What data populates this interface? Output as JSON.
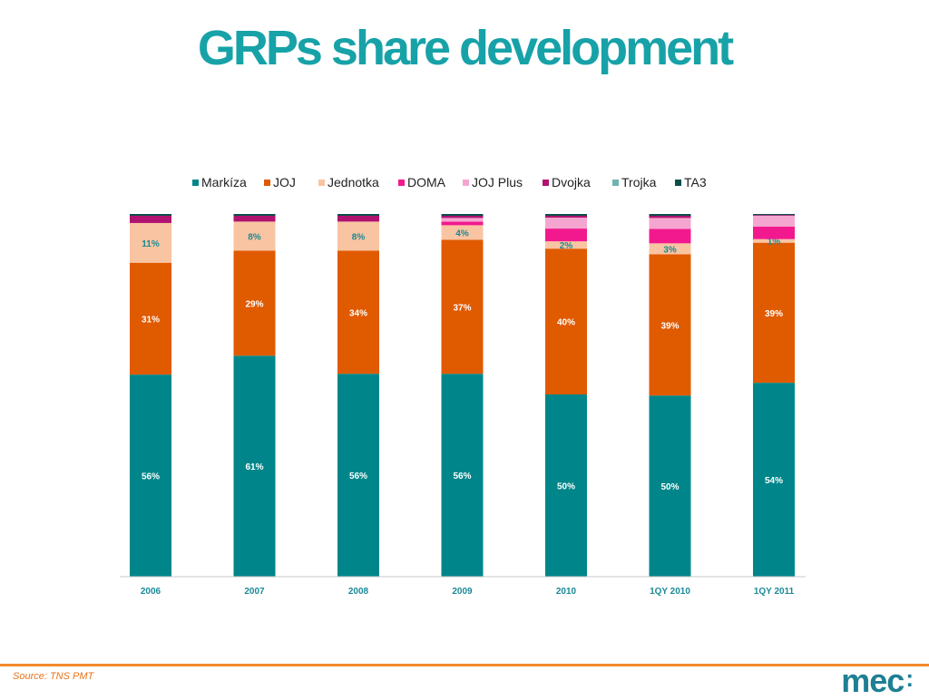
{
  "colors": {
    "Markíza": "#00868a",
    "JOJ": "#e05a00",
    "Jednotka": "#f9c4a1",
    "DOMA": "#f2198f",
    "JOJ Plus": "#f5a6d0",
    "Dvojka": "#b0126f",
    "Trojka": "#6fb4b0",
    "TA3": "#0e4d4a"
  },
  "chart_data": {
    "type": "bar",
    "stacked": true,
    "title": "GRPs share development",
    "categories": [
      "2006",
      "2007",
      "2008",
      "2009",
      "2010",
      "1QY 2010",
      "1QY 2011"
    ],
    "ylim": [
      0,
      100
    ],
    "grid": false,
    "legend_position": "top",
    "series": [
      {
        "name": "Markíza",
        "values": [
          56,
          61,
          56,
          56,
          50,
          50,
          54
        ],
        "labels": [
          "56%",
          "61%",
          "56%",
          "56%",
          "50%",
          "50%",
          "54%"
        ]
      },
      {
        "name": "JOJ",
        "values": [
          31,
          29,
          34,
          37,
          40,
          39,
          39
        ],
        "labels": [
          "31%",
          "29%",
          "34%",
          "37%",
          "40%",
          "39%",
          "39%"
        ]
      },
      {
        "name": "Jednotka",
        "values": [
          11,
          8,
          8,
          4,
          2,
          3,
          1
        ],
        "labels": [
          "11%",
          "8%",
          "8%",
          "4%",
          "2%",
          "3%",
          "1%"
        ]
      },
      {
        "name": "DOMA",
        "values": [
          0,
          0,
          0,
          1,
          3.5,
          4,
          3.5
        ],
        "labels": [
          "",
          "",
          "",
          "",
          "",
          "",
          ""
        ]
      },
      {
        "name": "JOJ Plus",
        "values": [
          0,
          0,
          0,
          1,
          3,
          3,
          3
        ],
        "labels": [
          "",
          "",
          "",
          "",
          "",
          "",
          ""
        ]
      },
      {
        "name": "Dvojka",
        "values": [
          2,
          1.6,
          1.6,
          0.6,
          0.5,
          0.6,
          0.2
        ],
        "labels": [
          "",
          "",
          "",
          "",
          "",
          "",
          ""
        ]
      },
      {
        "name": "Trojka",
        "values": [
          0,
          0,
          0,
          0,
          0,
          0,
          0
        ],
        "labels": [
          "",
          "",
          "",
          "",
          "",
          "",
          ""
        ]
      },
      {
        "name": "TA3",
        "values": [
          0.5,
          0.5,
          0.5,
          0.5,
          0.5,
          0.5,
          0.3
        ],
        "labels": [
          "",
          "",
          "",
          "",
          "",
          "",
          ""
        ]
      }
    ]
  },
  "footer": {
    "source": "Source: TNS PMT",
    "logo_text": "mec",
    "logo_mark": ":"
  }
}
